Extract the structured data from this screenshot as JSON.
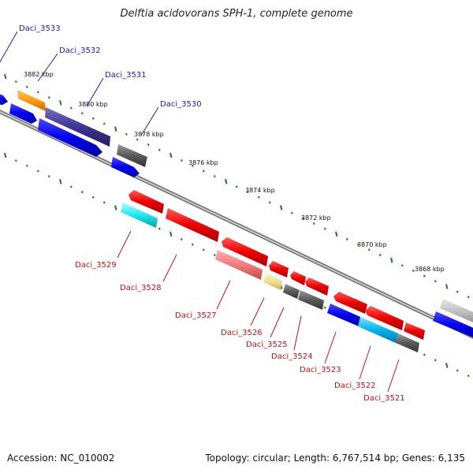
{
  "title": "Delftia acidovorans SPH-1, complete genome",
  "footer": {
    "accession": "Accession: NC_010002",
    "summary": "Topology: circular; Length: 6,767,514 bp; Genes: 6,135"
  },
  "kbp_ticks": [
    "3882 kbp",
    "3880 kbp",
    "3878 kbp",
    "3876 kbp",
    "3874 kbp",
    "3872 kbp",
    "3870 kbp",
    "3868 kbp"
  ],
  "forward_genes": [
    "Daci_3533",
    "Daci_3532",
    "Daci_3531",
    "Daci_3530"
  ],
  "reverse_genes": [
    "Daci_3529",
    "Daci_3528",
    "Daci_3527",
    "Daci_3526",
    "Daci_3525",
    "Daci_3524",
    "Daci_3523",
    "Daci_3522",
    "Daci_3521"
  ],
  "colors": {
    "forward_label": "#1a1acc",
    "reverse_label": "#cc1111",
    "tick": "#1a7a1a",
    "backbone": "#8c8c8c"
  }
}
